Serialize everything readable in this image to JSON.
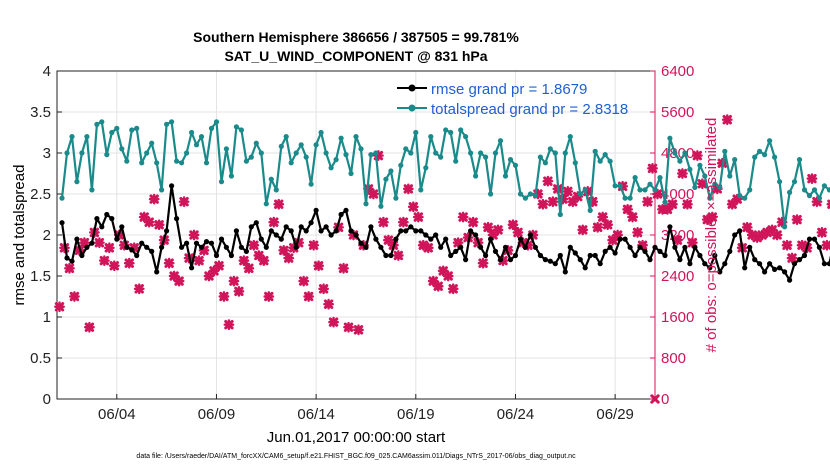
{
  "chart_data": {
    "type": "line",
    "title_line1": "Southern Hemisphere 386656 / 387505 = 99.781%",
    "title_line2": "SAT_U_WIND_COMPONENT @ 831 hPa",
    "xlabel": "Jun.01,2017 00:00:00 start",
    "ylabel_left": "rmse and totalspread",
    "ylabel_right": "# of obs: o=possible; ×=assimilated",
    "footer": "data file: /Users/raeder/DAI/ATM_forcXX/CAM6_setup/f.e21.FHIST_BGC.f09_025.CAM6assim.011/Diags_NTrS_2017-06/obs_diag_output.nc",
    "xlim": [
      1.0,
      31.0
    ],
    "x_ticks": [
      4,
      9,
      14,
      19,
      24,
      29
    ],
    "x_tick_labels": [
      "06/04",
      "06/09",
      "06/14",
      "06/19",
      "06/24",
      "06/29"
    ],
    "ylim_left": [
      0,
      4
    ],
    "y_ticks_left": [
      "0",
      "0.5",
      "1",
      "1.5",
      "2",
      "2.5",
      "3",
      "3.5",
      "4"
    ],
    "ylim_right": [
      0,
      6400
    ],
    "y_ticks_right": [
      "0",
      "800",
      "1600",
      "2400",
      "3200",
      "4000",
      "4800",
      "5600",
      "6400"
    ],
    "colors": {
      "rmse": "#000000",
      "spread": "#1a8a8a",
      "obs": "#d0155a",
      "legend_text": "#1f5fd1"
    },
    "legend": [
      "rmse grand pr = 1.8679",
      "totalspread grand pr = 2.8318"
    ],
    "series": [
      {
        "name": "rmse",
        "x_start": 1.25,
        "x_step": 0.25,
        "values": [
          2.15,
          1.72,
          1.68,
          1.95,
          1.75,
          1.85,
          1.9,
          2.2,
          2.1,
          2.25,
          2.2,
          1.95,
          2.1,
          1.85,
          1.82,
          1.75,
          1.9,
          1.85,
          1.8,
          1.55,
          1.85,
          2.05,
          2.6,
          2.2,
          1.85,
          1.9,
          1.6,
          1.9,
          1.85,
          1.92,
          1.9,
          1.75,
          1.95,
          1.85,
          1.75,
          2.05,
          1.85,
          1.8,
          2.1,
          2.15,
          1.95,
          1.85,
          2.05,
          2.0,
          1.95,
          2.1,
          2.05,
          1.85,
          2.1,
          2.05,
          2.15,
          2.3,
          2.05,
          2.1,
          2.0,
          2.05,
          2.25,
          2.3,
          2.05,
          2.0,
          1.9,
          1.85,
          2.1,
          1.95,
          1.85,
          1.75,
          1.75,
          1.95,
          2.05,
          2.05,
          2.1,
          2.05,
          2.05,
          2.0,
          1.95,
          2.0,
          1.85,
          1.95,
          1.75,
          1.8,
          1.85,
          1.7,
          2.05,
          2.0,
          1.85,
          1.75,
          1.95,
          1.8,
          1.7,
          1.85,
          1.7,
          1.75,
          1.95,
          1.85,
          2.0,
          1.85,
          1.75,
          1.7,
          1.68,
          1.65,
          1.75,
          1.55,
          1.85,
          1.78,
          1.7,
          1.6,
          1.75,
          1.75,
          1.65,
          1.8,
          1.85,
          1.78,
          1.95,
          1.95,
          1.85,
          1.75,
          1.85,
          1.8,
          1.7,
          1.85,
          1.8,
          1.75,
          2.1,
          1.85,
          1.7,
          1.85,
          1.65,
          1.85,
          1.75,
          1.65,
          1.6,
          1.75,
          1.55,
          1.65,
          1.8,
          2.0,
          2.05,
          1.6,
          1.85,
          1.7,
          1.65,
          1.55,
          1.65,
          1.58,
          1.6,
          1.55,
          1.45,
          1.65,
          1.7,
          1.75,
          1.95,
          1.95,
          1.85,
          1.65,
          1.65,
          1.95,
          2.1,
          1.95,
          1.75,
          1.75,
          1.9,
          1.85,
          1.7,
          1.75,
          1.75,
          1.8,
          1.75,
          1.85
        ]
      },
      {
        "name": "totalspread",
        "x_start": 1.25,
        "x_step": 0.25,
        "values": [
          2.45,
          3.0,
          3.2,
          2.65,
          3.0,
          3.2,
          2.55,
          3.35,
          3.38,
          2.98,
          3.25,
          3.3,
          3.05,
          2.9,
          3.28,
          3.3,
          2.88,
          3.0,
          3.12,
          2.88,
          2.55,
          3.35,
          3.38,
          2.9,
          2.88,
          3.0,
          3.25,
          3.1,
          3.2,
          2.88,
          3.3,
          3.38,
          2.65,
          3.05,
          2.72,
          3.32,
          3.28,
          2.9,
          2.95,
          3.12,
          3.0,
          2.38,
          2.68,
          2.55,
          3.08,
          3.2,
          2.88,
          3.0,
          3.1,
          2.95,
          2.62,
          3.1,
          3.25,
          3.0,
          2.82,
          2.92,
          3.18,
          2.98,
          2.75,
          3.2,
          3.05,
          2.38,
          2.98,
          3.0,
          2.35,
          2.68,
          2.78,
          2.45,
          2.85,
          3.05,
          3.0,
          3.25,
          2.55,
          2.82,
          3.2,
          3.0,
          2.95,
          3.28,
          3.25,
          2.9,
          3.28,
          3.2,
          3.0,
          2.72,
          3.0,
          2.95,
          2.5,
          3.0,
          3.15,
          2.72,
          2.92,
          2.85,
          2.5,
          2.45,
          2.5,
          2.48,
          2.95,
          2.88,
          3.05,
          3.0,
          2.25,
          3.0,
          3.2,
          2.88,
          2.5,
          2.55,
          2.3,
          3.02,
          2.9,
          2.98,
          2.9,
          2.6,
          2.6,
          2.45,
          2.45,
          2.7,
          2.55,
          2.55,
          2.62,
          2.55,
          2.7,
          2.4,
          3.18,
          3.0,
          2.9,
          3.0,
          2.8,
          2.58,
          2.85,
          2.72,
          2.45,
          2.62,
          2.58,
          3.02,
          2.72,
          2.92,
          2.48,
          2.45,
          2.55,
          2.95,
          3.02,
          2.98,
          3.15,
          2.95,
          2.65,
          2.1,
          2.52,
          2.65,
          2.92,
          2.55,
          2.48,
          2.55,
          2.45,
          2.6,
          2.55,
          2.52,
          2.92,
          2.65,
          2.62,
          2.55,
          2.65,
          2.7,
          2.58,
          2.5,
          2.45,
          2.62,
          2.72,
          2.75,
          2.62,
          2.68
        ]
      },
      {
        "name": "obs_assimilated",
        "x_start": 1.125,
        "x_step": 0.25,
        "values": [
          1800,
          2950,
          2550,
          2000,
          2900,
          3050,
          1400,
          3250,
          3050,
          2700,
          2950,
          2600,
          3200,
          3000,
          2650,
          2950,
          2150,
          3550,
          3450,
          3900,
          3400,
          3100,
          2650,
          2400,
          2300,
          3850,
          2750,
          3200,
          2700,
          2900,
          2400,
          2500,
          2600,
          2000,
          1450,
          2300,
          2100,
          2700,
          2550,
          3000,
          2800,
          2700,
          2000,
          3450,
          3800,
          2900,
          2750,
          2950,
          3050,
          2300,
          2000,
          3000,
          2600,
          2150,
          1850,
          1500,
          3350,
          2550,
          1400,
          3200,
          1350,
          3000,
          4100,
          4000,
          4750,
          3450,
          3100,
          3000,
          2800,
          3450,
          4100,
          3750,
          3550,
          3000,
          2950,
          2300,
          2200,
          2500,
          2400,
          2150,
          3050,
          3550,
          3150,
          3450,
          3050,
          2650,
          3350,
          3200,
          3300,
          2700,
          2900,
          3400,
          3250,
          3050,
          3000,
          3200,
          4000,
          3800,
          4250,
          3850,
          4100,
          3900,
          4050,
          3850,
          3950,
          3300,
          4050,
          3850,
          3350,
          3550,
          3400,
          3100,
          3200,
          4150,
          3700,
          3550,
          3250,
          3000,
          3850,
          4500,
          4000,
          3700,
          3700,
          3800,
          3100,
          4400,
          3800,
          3050,
          4750,
          4200,
          3500,
          3550,
          4100,
          4600,
          5450,
          3800,
          3900,
          2950,
          3350,
          3200,
          3150,
          3200,
          3250,
          3300,
          3200,
          3450,
          3000,
          2750,
          3500,
          3000,
          2950,
          4300,
          3850,
          3250,
          3000,
          3800,
          3700,
          3550,
          3850,
          3850,
          4150,
          3600,
          3400,
          4250,
          3600,
          3600,
          3250,
          2800,
          2950,
          3300,
          3750,
          3300,
          2750,
          3150,
          3050,
          2750
        ]
      }
    ]
  }
}
